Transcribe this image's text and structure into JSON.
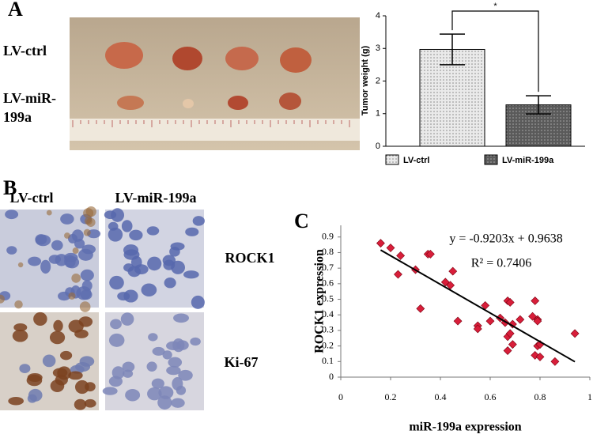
{
  "panel_labels": [
    "A",
    "B",
    "C"
  ],
  "photo_rows": [
    "LV-ctrl",
    "LV-miR-199a"
  ],
  "ihc": {
    "columns": [
      "LV-ctrl",
      "LV-miR-199a"
    ],
    "rows": [
      "ROCK1",
      "Ki-67"
    ]
  },
  "chart_data": [
    {
      "type": "bar",
      "y_label": "Tumor weight (g)",
      "categories": [
        "LV-ctrl",
        "LV-miR-199a"
      ],
      "values": [
        2.97,
        1.27
      ],
      "errors": [
        0.47,
        0.28
      ],
      "colors": [
        "#d9d9d9",
        "#6e6e6e"
      ],
      "ylim": [
        0,
        4
      ],
      "yticks": [
        0,
        1,
        2,
        3,
        4
      ],
      "annotation": "*",
      "legend": "bottom"
    },
    {
      "type": "scatter",
      "x_label": "miR-199a expression",
      "y_label": "ROCK1 expression",
      "x": [
        0.16,
        0.2,
        0.24,
        0.23,
        0.35,
        0.36,
        0.3,
        0.42,
        0.45,
        0.44,
        0.32,
        0.47,
        0.55,
        0.55,
        0.6,
        0.64,
        0.67,
        0.68,
        0.66,
        0.69,
        0.72,
        0.67,
        0.69,
        0.67,
        0.68,
        0.78,
        0.77,
        0.79,
        0.79,
        0.78,
        0.8,
        0.8,
        0.86,
        0.94,
        0.58,
        0.79
      ],
      "values": [
        0.86,
        0.83,
        0.78,
        0.66,
        0.79,
        0.79,
        0.69,
        0.61,
        0.68,
        0.59,
        0.44,
        0.36,
        0.33,
        0.31,
        0.36,
        0.38,
        0.49,
        0.48,
        0.35,
        0.34,
        0.37,
        0.26,
        0.21,
        0.17,
        0.28,
        0.49,
        0.39,
        0.37,
        0.2,
        0.14,
        0.13,
        0.21,
        0.1,
        0.28,
        0.46,
        0.36
      ],
      "color": "#d81e3a",
      "xlim": [
        0,
        1
      ],
      "xticks": [
        0,
        0.2,
        0.4,
        0.6,
        0.8,
        1
      ],
      "ylim": [
        0,
        0.975
      ],
      "yticks": [
        0,
        0.1,
        0.2,
        0.3,
        0.4,
        0.5,
        0.6,
        0.7,
        0.8,
        0.9
      ],
      "trendline": {
        "slope": -0.9203,
        "intercept": 0.9638,
        "x": [
          0.16,
          0.94
        ]
      },
      "annotations": [
        "y = -0.9203x + 0.9638",
        "R² = 0.7406"
      ]
    }
  ]
}
